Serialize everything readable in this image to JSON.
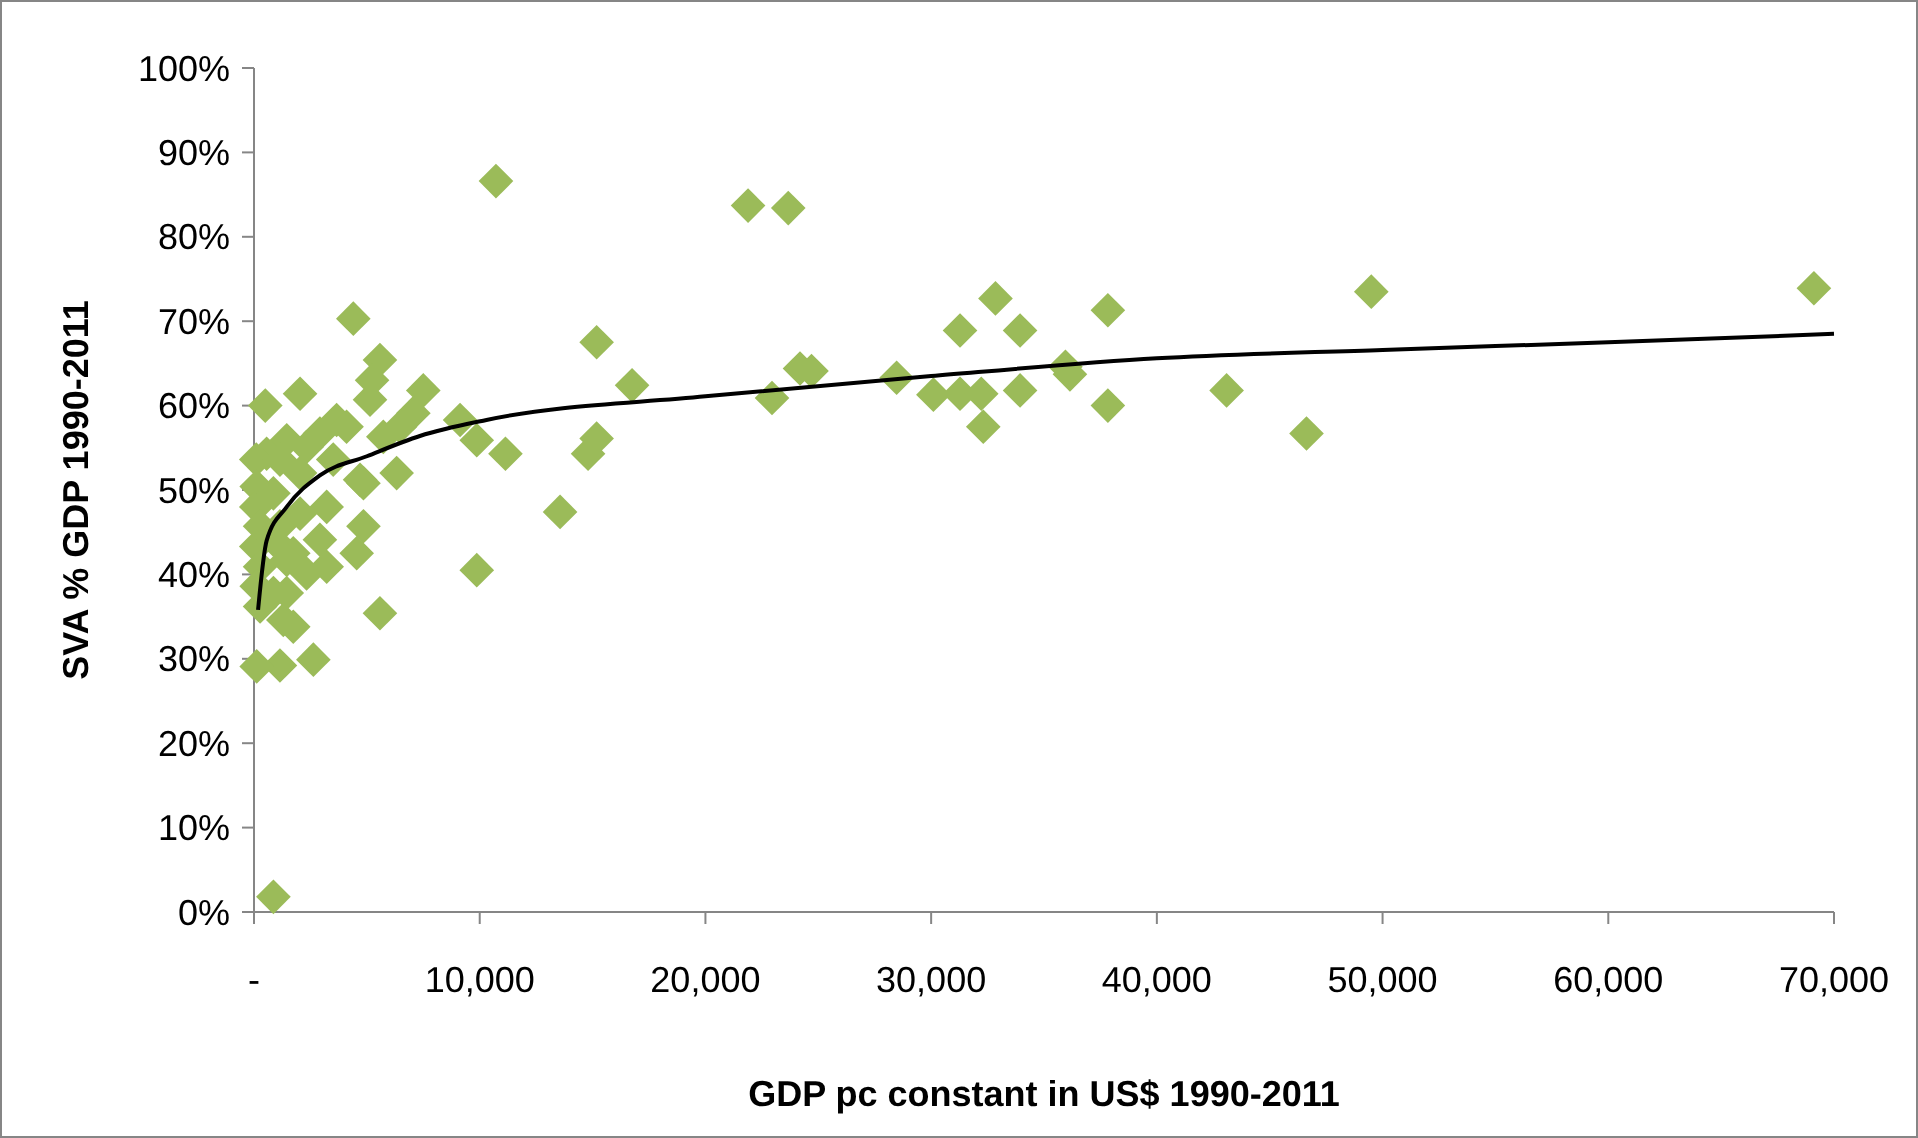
{
  "chart_data": {
    "type": "scatter",
    "xlabel": "GDP pc constant in US$ 1990-2011",
    "ylabel": "SVA % GDP 1990-2011",
    "xlim": [
      0,
      70000
    ],
    "ylim": [
      0,
      100
    ],
    "xticks": [
      {
        "value": 0,
        "label": "-"
      },
      {
        "value": 10000,
        "label": "10,000"
      },
      {
        "value": 20000,
        "label": "20,000"
      },
      {
        "value": 30000,
        "label": "30,000"
      },
      {
        "value": 40000,
        "label": "40,000"
      },
      {
        "value": 50000,
        "label": "50,000"
      },
      {
        "value": 60000,
        "label": "60,000"
      },
      {
        "value": 70000,
        "label": "70,000"
      }
    ],
    "yticks": [
      {
        "value": 0,
        "label": "0%"
      },
      {
        "value": 10,
        "label": "10%"
      },
      {
        "value": 20,
        "label": "20%"
      },
      {
        "value": 30,
        "label": "30%"
      },
      {
        "value": 40,
        "label": "40%"
      },
      {
        "value": 50,
        "label": "50%"
      },
      {
        "value": 60,
        "label": "60%"
      },
      {
        "value": 70,
        "label": "70%"
      },
      {
        "value": 80,
        "label": "80%"
      },
      {
        "value": 90,
        "label": "90%"
      },
      {
        "value": 100,
        "label": "100%"
      }
    ],
    "grid": false,
    "series": [
      {
        "color": "#9bbb59",
        "marker": "diamond",
        "x": [
          10720,
          21890,
          23670,
          15180,
          16750,
          15180,
          14800,
          13560,
          9870,
          11140,
          9870,
          22950,
          24190,
          24700,
          28470,
          31280,
          32850,
          33940,
          30100,
          31280,
          32220,
          32310,
          33940,
          35950,
          36150,
          37830,
          37830,
          43090,
          46630,
          49500,
          69110,
          4400,
          2040,
          500,
          5580,
          5230,
          5140,
          7500,
          7060,
          9130,
          6320,
          4850,
          4850,
          4550,
          5580,
          2630,
          1150,
          120,
          860,
          3220,
          2330,
          1300,
          270,
          1740,
          3660,
          2920,
          3510,
          3220,
          2920,
          1740,
          1450,
          560,
          100,
          120,
          100,
          270,
          100,
          270,
          120,
          860,
          1150,
          2040,
          2040,
          1450,
          860,
          1150,
          4100,
          4700,
          2330,
          860,
          1450,
          6470,
          5730
        ],
        "values": [
          86.6,
          83.7,
          83.4,
          67.5,
          62.4,
          56.1,
          54.3,
          47.4,
          40.5,
          54.3,
          55.9,
          60.9,
          64.4,
          64.1,
          63.3,
          68.9,
          72.7,
          68.9,
          61.3,
          61.4,
          61.4,
          57.5,
          61.8,
          64.6,
          63.7,
          71.3,
          60.0,
          61.8,
          56.7,
          73.5,
          73.9,
          70.3,
          61.4,
          60.0,
          65.4,
          63.0,
          60.7,
          61.8,
          59.1,
          58.3,
          52.0,
          50.8,
          45.7,
          42.5,
          35.4,
          29.9,
          29.2,
          29.1,
          1.8,
          40.9,
          40.1,
          34.6,
          36.2,
          33.8,
          58.3,
          56.7,
          53.6,
          48.0,
          44.1,
          42.5,
          55.9,
          54.3,
          53.6,
          50.4,
          48.0,
          45.7,
          43.3,
          40.9,
          38.6,
          37.8,
          45.7,
          52.0,
          47.2,
          41.7,
          49.6,
          53.6,
          57.5,
          51.2,
          55.1,
          44.1,
          37.8,
          57.5,
          56.3
        ]
      },
      {
        "type": "line",
        "color": "#000000",
        "marker": "none",
        "x": [
          180,
          560,
          1450,
          2900,
          5000,
          7350,
          10300,
          20000,
          30000,
          40000,
          50000,
          60000,
          70000
        ],
        "values": [
          35.8,
          44,
          48,
          51.7,
          54,
          56.4,
          58.3,
          61.1,
          63.5,
          65.6,
          66.6,
          67.5,
          68.5
        ]
      }
    ]
  }
}
